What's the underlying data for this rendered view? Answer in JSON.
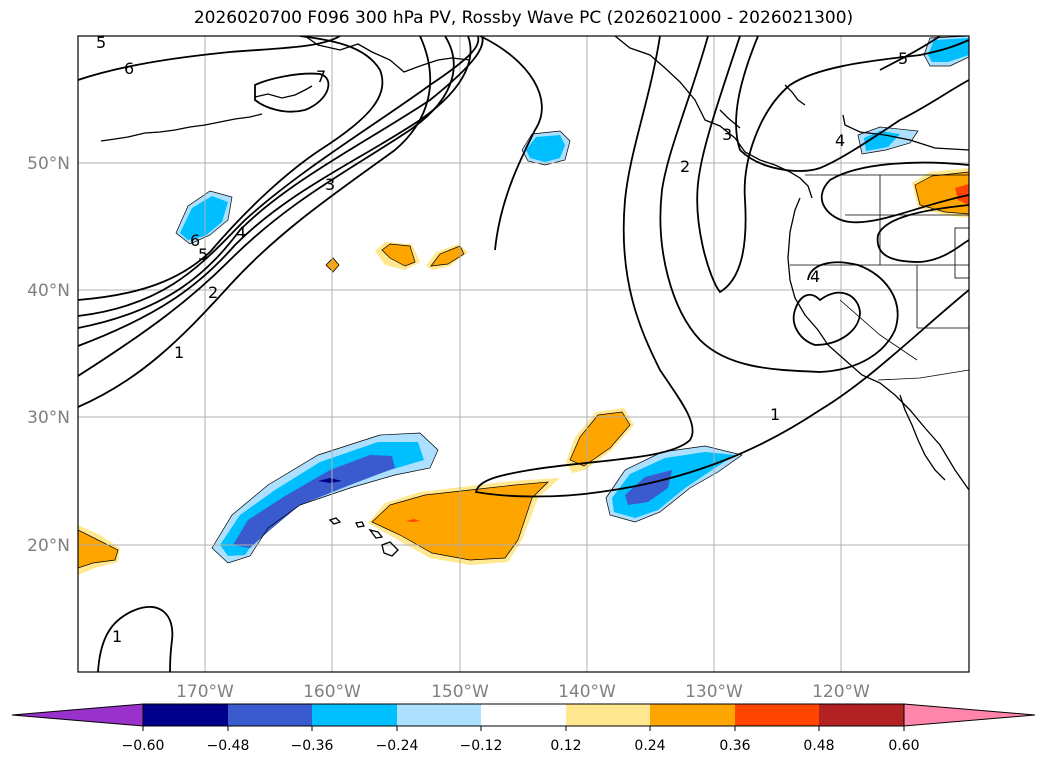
{
  "title": "2026020700 F096 300 hPa PV, Rossby Wave PC (2026021000 - 2026021300)",
  "axes": {
    "lat_labels": [
      "50°N",
      "40°N",
      "30°N",
      "20°N"
    ],
    "lon_labels": [
      "170°W",
      "160°W",
      "150°W",
      "140°W",
      "130°W",
      "120°W"
    ],
    "lon_range": [
      -180,
      -110
    ],
    "lat_range": [
      10,
      60
    ],
    "grid": true
  },
  "contour_labels": [
    "5",
    "6",
    "7",
    "3",
    "4",
    "5",
    "6",
    "2",
    "1",
    "2",
    "3",
    "4",
    "4",
    "5",
    "1",
    "1"
  ],
  "colorbar": {
    "ticks": [
      "−0.60",
      "−0.48",
      "−0.36",
      "−0.24",
      "−0.12",
      "0.12",
      "0.24",
      "0.36",
      "0.48",
      "0.60"
    ],
    "colors": [
      "#9932cc",
      "#00008b",
      "#3a5bcd",
      "#00bfff",
      "#addfff",
      "#ffffff",
      "#ffe88f",
      "#ffa500",
      "#ff4500",
      "#b22222",
      "#ff86aa"
    ],
    "extend": "both"
  }
}
